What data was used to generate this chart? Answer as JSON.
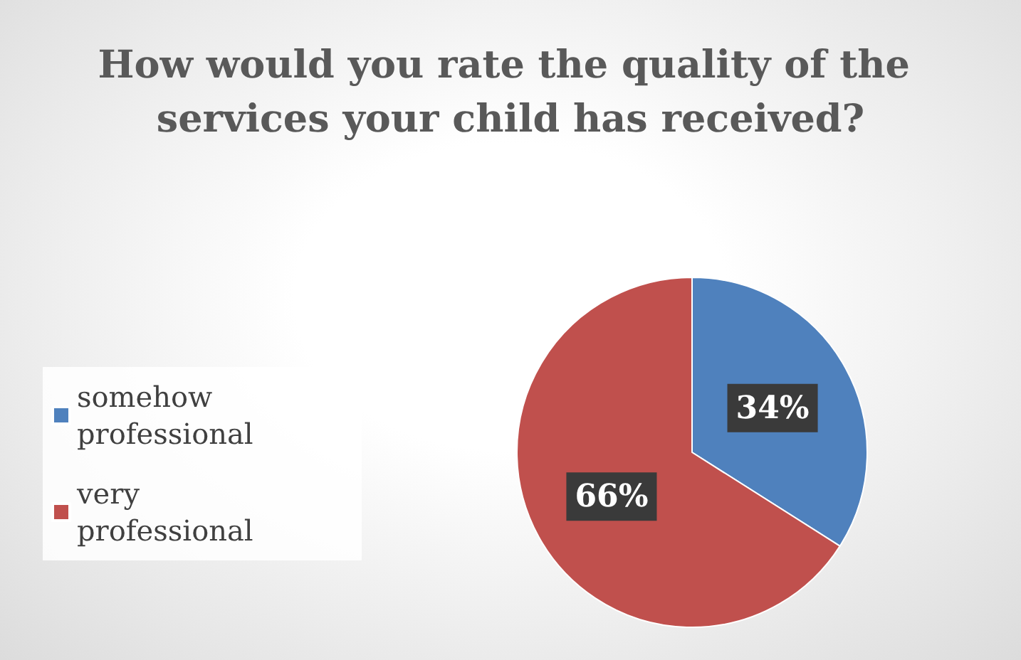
{
  "chart_data": {
    "type": "pie",
    "title": "How would you rate the quality of the services your child has received?",
    "categories": [
      "somehow professional",
      "very professional"
    ],
    "values": [
      34,
      66
    ],
    "colors": [
      "#4f81bd",
      "#c0504d"
    ],
    "value_labels": [
      "34%",
      "66%"
    ],
    "legend": "left"
  }
}
